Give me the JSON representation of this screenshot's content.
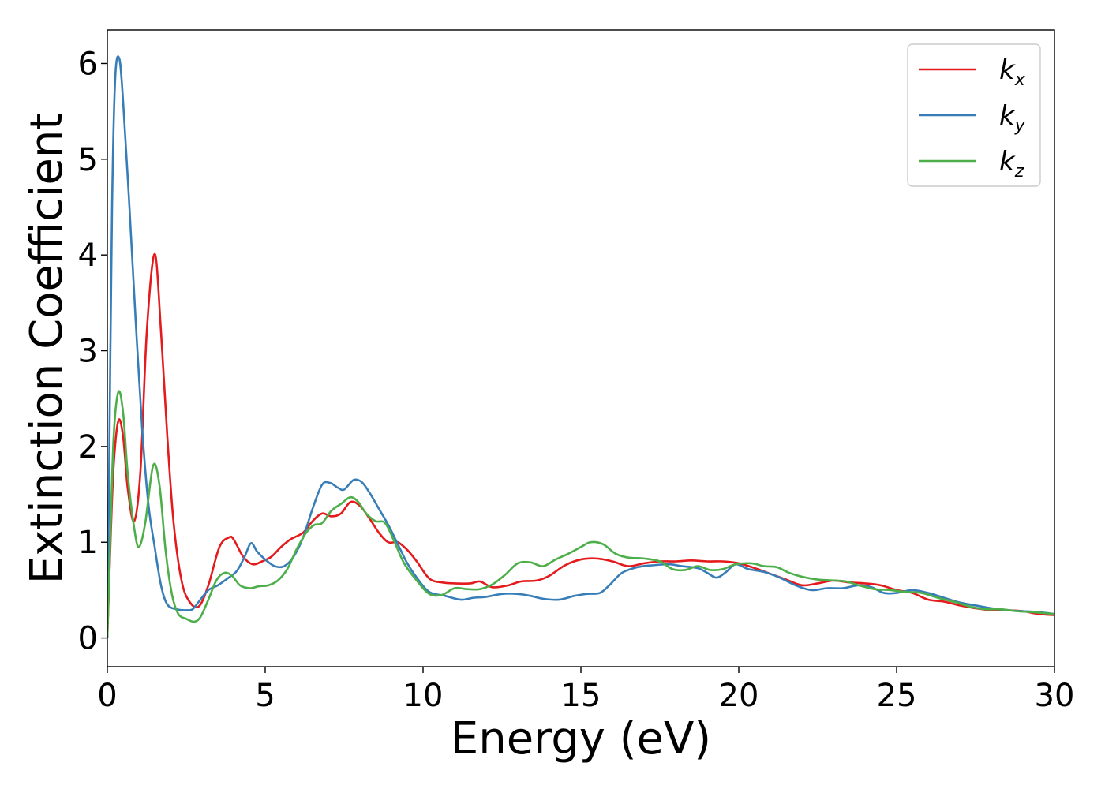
{
  "chart_data": {
    "type": "line",
    "xlabel": "Energy (eV)",
    "ylabel": "Extinction Coefficient",
    "xlim": [
      0,
      30
    ],
    "ylim": [
      -0.3,
      6.35
    ],
    "xticks": [
      0,
      5,
      10,
      15,
      20,
      25,
      30
    ],
    "yticks": [
      0,
      1,
      2,
      3,
      4,
      5,
      6
    ],
    "grid": false,
    "legend_position": "top-right",
    "series": [
      {
        "name": "k",
        "subscript": "x",
        "color": "#e41a1c",
        "points": [
          [
            0,
            0
          ],
          [
            0.1,
            1.0
          ],
          [
            0.2,
            1.8
          ],
          [
            0.35,
            2.27
          ],
          [
            0.5,
            2.1
          ],
          [
            0.65,
            1.55
          ],
          [
            0.85,
            1.22
          ],
          [
            1.05,
            1.75
          ],
          [
            1.25,
            3.2
          ],
          [
            1.5,
            4.01
          ],
          [
            1.7,
            3.2
          ],
          [
            1.9,
            2.1
          ],
          [
            2.1,
            1.2
          ],
          [
            2.35,
            0.6
          ],
          [
            2.6,
            0.38
          ],
          [
            2.9,
            0.33
          ],
          [
            3.2,
            0.55
          ],
          [
            3.55,
            0.95
          ],
          [
            3.85,
            1.05
          ],
          [
            4.0,
            1.03
          ],
          [
            4.3,
            0.85
          ],
          [
            4.6,
            0.77
          ],
          [
            4.9,
            0.8
          ],
          [
            5.2,
            0.85
          ],
          [
            5.5,
            0.95
          ],
          [
            5.8,
            1.03
          ],
          [
            6.2,
            1.1
          ],
          [
            6.5,
            1.22
          ],
          [
            6.8,
            1.3
          ],
          [
            7.1,
            1.27
          ],
          [
            7.4,
            1.3
          ],
          [
            7.7,
            1.42
          ],
          [
            8.0,
            1.38
          ],
          [
            8.3,
            1.25
          ],
          [
            8.6,
            1.1
          ],
          [
            8.9,
            1.0
          ],
          [
            9.2,
            1.0
          ],
          [
            9.5,
            0.92
          ],
          [
            9.8,
            0.8
          ],
          [
            10.2,
            0.62
          ],
          [
            10.6,
            0.58
          ],
          [
            11.0,
            0.57
          ],
          [
            11.5,
            0.57
          ],
          [
            11.8,
            0.59
          ],
          [
            12.2,
            0.53
          ],
          [
            12.7,
            0.55
          ],
          [
            13.1,
            0.59
          ],
          [
            13.6,
            0.6
          ],
          [
            14.0,
            0.65
          ],
          [
            14.5,
            0.76
          ],
          [
            15.0,
            0.82
          ],
          [
            15.5,
            0.83
          ],
          [
            16.0,
            0.8
          ],
          [
            16.5,
            0.75
          ],
          [
            17.0,
            0.78
          ],
          [
            17.5,
            0.8
          ],
          [
            18.0,
            0.8
          ],
          [
            18.5,
            0.81
          ],
          [
            19.0,
            0.8
          ],
          [
            19.5,
            0.8
          ],
          [
            20.0,
            0.78
          ],
          [
            20.5,
            0.73
          ],
          [
            21.0,
            0.67
          ],
          [
            21.5,
            0.61
          ],
          [
            22.0,
            0.55
          ],
          [
            22.5,
            0.57
          ],
          [
            23.0,
            0.6
          ],
          [
            23.5,
            0.58
          ],
          [
            24.0,
            0.57
          ],
          [
            24.5,
            0.55
          ],
          [
            25.0,
            0.5
          ],
          [
            25.5,
            0.47
          ],
          [
            26.0,
            0.4
          ],
          [
            26.5,
            0.38
          ],
          [
            27.0,
            0.34
          ],
          [
            27.5,
            0.31
          ],
          [
            28.0,
            0.29
          ],
          [
            28.5,
            0.29
          ],
          [
            29.0,
            0.28
          ],
          [
            29.5,
            0.25
          ],
          [
            30.0,
            0.24
          ]
        ]
      },
      {
        "name": "k",
        "subscript": "y",
        "color": "#377eb8",
        "points": [
          [
            0,
            0
          ],
          [
            0.05,
            1.5
          ],
          [
            0.15,
            4.5
          ],
          [
            0.25,
            5.85
          ],
          [
            0.38,
            6.05
          ],
          [
            0.5,
            5.6
          ],
          [
            0.7,
            4.5
          ],
          [
            0.9,
            3.3
          ],
          [
            1.1,
            2.2
          ],
          [
            1.3,
            1.4
          ],
          [
            1.5,
            0.95
          ],
          [
            1.7,
            0.55
          ],
          [
            1.9,
            0.35
          ],
          [
            2.2,
            0.3
          ],
          [
            2.5,
            0.29
          ],
          [
            2.7,
            0.3
          ],
          [
            2.9,
            0.38
          ],
          [
            3.2,
            0.5
          ],
          [
            3.5,
            0.55
          ],
          [
            3.8,
            0.62
          ],
          [
            4.1,
            0.7
          ],
          [
            4.35,
            0.85
          ],
          [
            4.55,
            0.99
          ],
          [
            4.75,
            0.9
          ],
          [
            5.0,
            0.82
          ],
          [
            5.3,
            0.75
          ],
          [
            5.6,
            0.75
          ],
          [
            5.9,
            0.85
          ],
          [
            6.2,
            1.05
          ],
          [
            6.5,
            1.35
          ],
          [
            6.8,
            1.6
          ],
          [
            7.05,
            1.62
          ],
          [
            7.3,
            1.57
          ],
          [
            7.5,
            1.55
          ],
          [
            7.8,
            1.65
          ],
          [
            8.05,
            1.63
          ],
          [
            8.3,
            1.52
          ],
          [
            8.6,
            1.35
          ],
          [
            8.9,
            1.18
          ],
          [
            9.2,
            0.98
          ],
          [
            9.5,
            0.78
          ],
          [
            9.8,
            0.63
          ],
          [
            10.2,
            0.48
          ],
          [
            10.7,
            0.44
          ],
          [
            11.2,
            0.4
          ],
          [
            11.6,
            0.42
          ],
          [
            12.0,
            0.43
          ],
          [
            12.5,
            0.46
          ],
          [
            13.0,
            0.46
          ],
          [
            13.4,
            0.44
          ],
          [
            13.8,
            0.41
          ],
          [
            14.3,
            0.4
          ],
          [
            14.8,
            0.44
          ],
          [
            15.2,
            0.46
          ],
          [
            15.6,
            0.47
          ],
          [
            15.9,
            0.55
          ],
          [
            16.3,
            0.68
          ],
          [
            16.8,
            0.74
          ],
          [
            17.3,
            0.76
          ],
          [
            17.8,
            0.77
          ],
          [
            18.2,
            0.75
          ],
          [
            18.7,
            0.73
          ],
          [
            19.0,
            0.68
          ],
          [
            19.3,
            0.63
          ],
          [
            19.6,
            0.69
          ],
          [
            19.9,
            0.77
          ],
          [
            20.3,
            0.72
          ],
          [
            20.8,
            0.69
          ],
          [
            21.3,
            0.63
          ],
          [
            21.8,
            0.55
          ],
          [
            22.3,
            0.5
          ],
          [
            22.8,
            0.52
          ],
          [
            23.3,
            0.52
          ],
          [
            23.8,
            0.55
          ],
          [
            24.2,
            0.53
          ],
          [
            24.6,
            0.47
          ],
          [
            25.0,
            0.47
          ],
          [
            25.5,
            0.5
          ],
          [
            26.0,
            0.47
          ],
          [
            26.5,
            0.42
          ],
          [
            27.0,
            0.37
          ],
          [
            27.5,
            0.34
          ],
          [
            28.0,
            0.31
          ],
          [
            28.5,
            0.29
          ],
          [
            29.0,
            0.28
          ],
          [
            29.5,
            0.27
          ],
          [
            30.0,
            0.25
          ]
        ]
      },
      {
        "name": "k",
        "subscript": "z",
        "color": "#4daf4a",
        "points": [
          [
            0,
            0
          ],
          [
            0.1,
            1.1
          ],
          [
            0.2,
            2.1
          ],
          [
            0.35,
            2.57
          ],
          [
            0.5,
            2.35
          ],
          [
            0.65,
            1.7
          ],
          [
            0.85,
            1.15
          ],
          [
            1.0,
            0.95
          ],
          [
            1.2,
            1.2
          ],
          [
            1.45,
            1.8
          ],
          [
            1.65,
            1.6
          ],
          [
            1.85,
            0.9
          ],
          [
            2.05,
            0.45
          ],
          [
            2.25,
            0.25
          ],
          [
            2.5,
            0.2
          ],
          [
            2.75,
            0.17
          ],
          [
            2.95,
            0.22
          ],
          [
            3.2,
            0.4
          ],
          [
            3.45,
            0.6
          ],
          [
            3.7,
            0.68
          ],
          [
            3.95,
            0.65
          ],
          [
            4.2,
            0.55
          ],
          [
            4.5,
            0.52
          ],
          [
            4.8,
            0.54
          ],
          [
            5.1,
            0.55
          ],
          [
            5.4,
            0.6
          ],
          [
            5.7,
            0.72
          ],
          [
            6.0,
            0.93
          ],
          [
            6.3,
            1.1
          ],
          [
            6.55,
            1.18
          ],
          [
            6.8,
            1.2
          ],
          [
            7.1,
            1.33
          ],
          [
            7.4,
            1.4
          ],
          [
            7.7,
            1.47
          ],
          [
            7.95,
            1.42
          ],
          [
            8.2,
            1.3
          ],
          [
            8.5,
            1.22
          ],
          [
            8.8,
            1.2
          ],
          [
            9.1,
            1.0
          ],
          [
            9.4,
            0.78
          ],
          [
            9.8,
            0.6
          ],
          [
            10.2,
            0.46
          ],
          [
            10.6,
            0.45
          ],
          [
            11.0,
            0.52
          ],
          [
            11.4,
            0.51
          ],
          [
            11.8,
            0.51
          ],
          [
            12.2,
            0.56
          ],
          [
            12.6,
            0.66
          ],
          [
            13.0,
            0.78
          ],
          [
            13.4,
            0.79
          ],
          [
            13.8,
            0.75
          ],
          [
            14.2,
            0.82
          ],
          [
            14.6,
            0.88
          ],
          [
            15.0,
            0.95
          ],
          [
            15.3,
            1.0
          ],
          [
            15.7,
            0.98
          ],
          [
            16.1,
            0.88
          ],
          [
            16.5,
            0.84
          ],
          [
            17.0,
            0.83
          ],
          [
            17.5,
            0.8
          ],
          [
            17.9,
            0.72
          ],
          [
            18.3,
            0.71
          ],
          [
            18.7,
            0.75
          ],
          [
            19.1,
            0.71
          ],
          [
            19.5,
            0.72
          ],
          [
            19.9,
            0.77
          ],
          [
            20.4,
            0.78
          ],
          [
            20.8,
            0.75
          ],
          [
            21.2,
            0.74
          ],
          [
            21.6,
            0.68
          ],
          [
            22.0,
            0.64
          ],
          [
            22.5,
            0.61
          ],
          [
            23.0,
            0.6
          ],
          [
            23.4,
            0.59
          ],
          [
            23.8,
            0.55
          ],
          [
            24.3,
            0.51
          ],
          [
            24.8,
            0.5
          ],
          [
            25.3,
            0.48
          ],
          [
            25.8,
            0.47
          ],
          [
            26.3,
            0.42
          ],
          [
            26.8,
            0.38
          ],
          [
            27.3,
            0.33
          ],
          [
            27.8,
            0.3
          ],
          [
            28.3,
            0.3
          ],
          [
            28.8,
            0.28
          ],
          [
            29.3,
            0.27
          ],
          [
            30.0,
            0.25
          ]
        ]
      }
    ]
  }
}
